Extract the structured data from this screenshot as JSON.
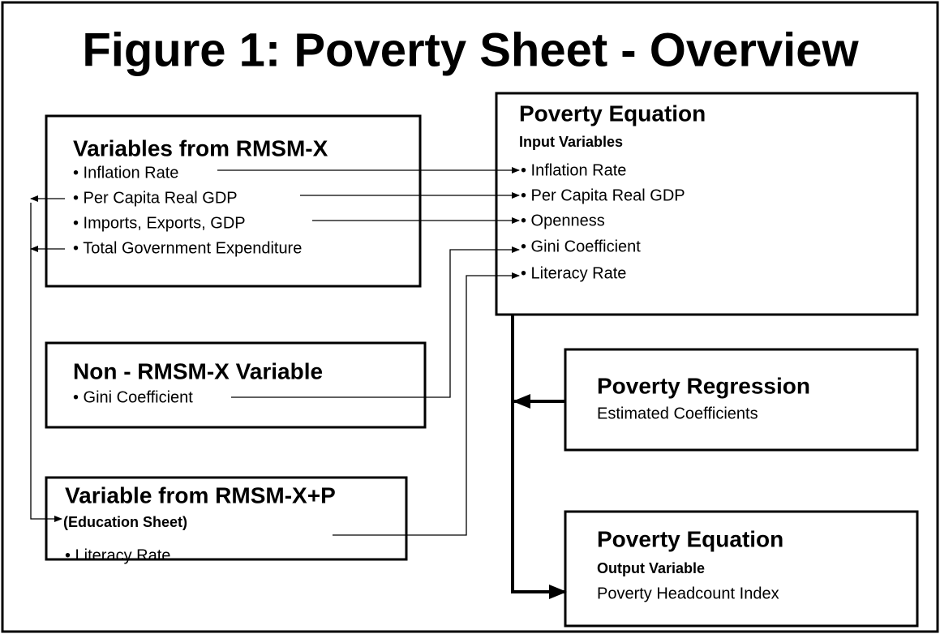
{
  "title": "Figure 1: Poverty Sheet - Overview",
  "rmsmx": {
    "title": "Variables from RMSM-X",
    "items": [
      "• Inflation Rate",
      "• Per Capita Real GDP",
      "• Imports, Exports, GDP",
      "• Total Government Expenditure"
    ]
  },
  "input": {
    "title": "Poverty Equation",
    "subtitle": "Input Variables",
    "items": [
      "• Inflation Rate",
      "• Per Capita Real GDP",
      "• Openness",
      "• Gini Coefficient",
      "• Literacy Rate"
    ]
  },
  "nonrmsmx": {
    "title": "Non - RMSM-X Variable",
    "items": [
      "• Gini Coefficient"
    ]
  },
  "rmsmxp": {
    "title": "Variable from RMSM-X+P",
    "subtitle": "(Education Sheet)",
    "items": [
      "• Literacy Rate"
    ]
  },
  "regression": {
    "title": "Poverty Regression",
    "subtitle": "Estimated Coefficients"
  },
  "output": {
    "title": "Poverty Equation",
    "subtitle": "Output Variable",
    "items": [
      "Poverty Headcount Index"
    ]
  }
}
